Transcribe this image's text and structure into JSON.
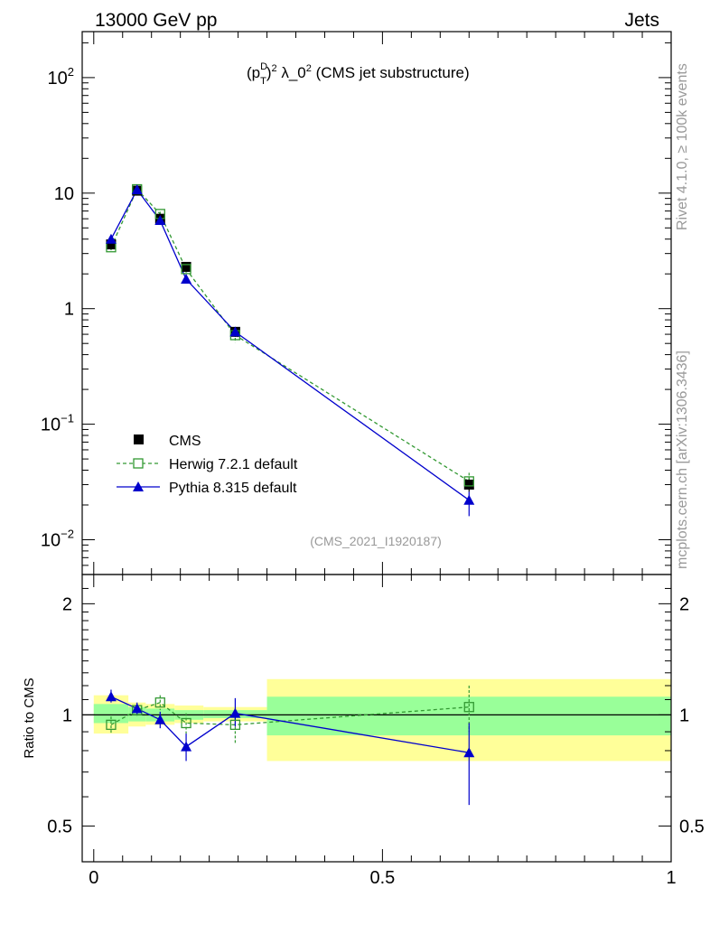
{
  "header": {
    "left": "13000 GeV pp",
    "right": "Jets"
  },
  "side_text": {
    "rivet": "Rivet 4.1.0, ≥ 100k events",
    "mcplots": "mcplots.cern.ch [arXiv:1306.3436]"
  },
  "watermark": "(CMS_2021_I1920187)",
  "title": {
    "pre": "(p",
    "sup_d": "D",
    "sub_t": "T",
    "sup_2": "2",
    "mid": " λ_0",
    "sup_2b": "2",
    "post": " (CMS jet substructure)"
  },
  "ratio_ylabel": "Ratio to CMS",
  "colors": {
    "cms": "#000000",
    "herwig": "#339933",
    "pythia": "#0000cc",
    "band_inner": "#99ff99",
    "band_outer": "#ffff99"
  },
  "chart_data": [
    {
      "type": "scatter",
      "panel": "main",
      "yscale": "log",
      "xlim": [
        -0.02,
        1.0
      ],
      "ylim": [
        0.005,
        250
      ],
      "yticks": [
        {
          "base": "10",
          "exp": "−2"
        },
        {
          "base": "10",
          "exp": "−1"
        },
        {
          "base": "1",
          "exp": ""
        },
        {
          "base": "10",
          "exp": ""
        },
        {
          "base": "10",
          "exp": "2"
        }
      ],
      "x": [
        0.03,
        0.075,
        0.115,
        0.16,
        0.245,
        0.65
      ],
      "series": [
        {
          "name": "CMS",
          "values": [
            3.6,
            10.5,
            6.0,
            2.3,
            0.63,
            0.03
          ],
          "err_lo": [
            0.3,
            0.5,
            0.3,
            0.15,
            0.06,
            0.004
          ],
          "err_hi": [
            0.3,
            0.5,
            0.3,
            0.15,
            0.06,
            0.004
          ]
        },
        {
          "name": "Herwig 7.2.1 default",
          "values": [
            3.4,
            10.8,
            6.6,
            2.2,
            0.59,
            0.032
          ],
          "err_lo": [
            0.2,
            0.4,
            0.3,
            0.15,
            0.08,
            0.004
          ],
          "err_hi": [
            0.2,
            0.4,
            0.3,
            0.15,
            0.08,
            0.006
          ]
        },
        {
          "name": "Pythia 8.315 default",
          "values": [
            4.0,
            10.7,
            5.8,
            1.8,
            0.63,
            0.022
          ],
          "err_lo": [
            0.2,
            0.4,
            0.3,
            0.1,
            0.05,
            0.006
          ],
          "err_hi": [
            0.2,
            0.4,
            0.3,
            0.1,
            0.05,
            0.004
          ]
        }
      ]
    },
    {
      "type": "line",
      "panel": "ratio",
      "yscale": "log",
      "xlim": [
        -0.02,
        1.0
      ],
      "ylim": [
        0.4,
        2.4
      ],
      "yticks": [
        "0.5",
        "1",
        "2"
      ],
      "xticks": [
        "0",
        "0.5",
        "1"
      ],
      "x": [
        0.03,
        0.075,
        0.115,
        0.16,
        0.245,
        0.65
      ],
      "series": [
        {
          "name": "Herwig 7.2.1 default",
          "values": [
            0.94,
            1.03,
            1.08,
            0.95,
            0.94,
            1.05
          ],
          "err_lo": [
            0.05,
            0.04,
            0.05,
            0.06,
            0.1,
            0.15
          ],
          "err_hi": [
            0.05,
            0.04,
            0.05,
            0.06,
            0.1,
            0.15
          ]
        },
        {
          "name": "Pythia 8.315 default",
          "values": [
            1.12,
            1.04,
            0.97,
            0.82,
            1.01,
            0.79
          ],
          "err_lo": [
            0.04,
            0.04,
            0.05,
            0.07,
            0.08,
            0.22
          ],
          "err_hi": [
            0.05,
            0.04,
            0.05,
            0.07,
            0.1,
            0.16
          ]
        }
      ],
      "bands": [
        {
          "x0": 0.0,
          "x1": 0.06,
          "in_lo": 0.95,
          "in_hi": 1.07,
          "out_lo": 0.89,
          "out_hi": 1.13
        },
        {
          "x0": 0.06,
          "x1": 0.09,
          "in_lo": 0.96,
          "in_hi": 1.05,
          "out_lo": 0.93,
          "out_hi": 1.08
        },
        {
          "x0": 0.09,
          "x1": 0.14,
          "in_lo": 0.96,
          "in_hi": 1.04,
          "out_lo": 0.94,
          "out_hi": 1.07
        },
        {
          "x0": 0.14,
          "x1": 0.19,
          "in_lo": 0.97,
          "in_hi": 1.03,
          "out_lo": 0.95,
          "out_hi": 1.06
        },
        {
          "x0": 0.19,
          "x1": 0.3,
          "in_lo": 0.98,
          "in_hi": 1.03,
          "out_lo": 0.96,
          "out_hi": 1.05
        },
        {
          "x0": 0.3,
          "x1": 1.0,
          "in_lo": 0.88,
          "in_hi": 1.12,
          "out_lo": 0.75,
          "out_hi": 1.25
        }
      ]
    }
  ]
}
